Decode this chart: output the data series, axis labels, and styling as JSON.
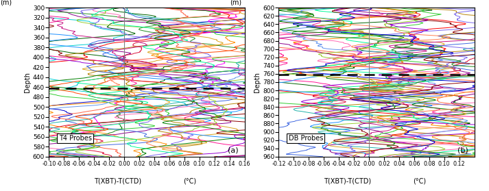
{
  "panel_a": {
    "depth_min": 300,
    "depth_max": 600,
    "xlim": [
      -0.1,
      0.16
    ],
    "xticks": [
      -0.1,
      -0.08,
      -0.06,
      -0.04,
      -0.02,
      0.0,
      0.02,
      0.04,
      0.06,
      0.08,
      0.1,
      0.12,
      0.14,
      0.16
    ],
    "xtick_labels": [
      "-0.10",
      "-0.08",
      "-0.06",
      "-0.04",
      "-0.02",
      "0.00",
      "0.02",
      "0.04",
      "0.06",
      "0.08",
      "0.10",
      "0.12",
      "0.14",
      "0.16"
    ],
    "yticks": [
      300,
      320,
      340,
      360,
      380,
      400,
      420,
      440,
      460,
      480,
      500,
      520,
      540,
      560,
      580,
      600
    ],
    "dashed_depth": 462,
    "n_profiles": 28,
    "label": "T4 Probes",
    "panel_tag": "(a)",
    "xlabel1": "T(XBT)-T(CTD)",
    "xlabel2": "(°C)"
  },
  "panel_b": {
    "depth_min": 600,
    "depth_max": 960,
    "xlim": [
      -0.12,
      0.14
    ],
    "xticks": [
      -0.12,
      -0.1,
      -0.08,
      -0.06,
      -0.04,
      -0.02,
      0.0,
      0.02,
      0.04,
      0.06,
      0.08,
      0.1,
      0.12
    ],
    "xtick_labels": [
      "-0.12",
      "-0.10",
      "-0.08",
      "-0.06",
      "-0.04",
      "-0.02",
      "0.00",
      "0.02",
      "0.04",
      "0.06",
      "0.08",
      "0.10",
      "0.12"
    ],
    "yticks": [
      600,
      620,
      640,
      660,
      680,
      700,
      720,
      740,
      760,
      780,
      800,
      820,
      840,
      860,
      880,
      900,
      920,
      940,
      960
    ],
    "dashed_depth": 762,
    "n_profiles": 27,
    "label": "DB Probes",
    "panel_tag": "(b)",
    "xlabel1": "T(XBT)-T(CTD)",
    "xlabel2": "(°C)"
  },
  "colors_a": [
    "#0000CD",
    "#FF0000",
    "#006400",
    "#FF00FF",
    "#00CED1",
    "#FF8C00",
    "#8B008B",
    "#228B22",
    "#DAA520",
    "#8B0000",
    "#FF69B4",
    "#1E90FF",
    "#DC143C",
    "#32CD32",
    "#FF1493",
    "#4169E1",
    "#FF6347",
    "#9400D3",
    "#20B2AA",
    "#B8860B",
    "#7B68EE",
    "#008000",
    "#FF4500",
    "#6495ED",
    "#9ACD32",
    "#C71585",
    "#00FA9A",
    "#FF7F50"
  ],
  "colors_b": [
    "#00CCCC",
    "#FF0000",
    "#006400",
    "#FF69B4",
    "#FF8C00",
    "#8B008B",
    "#DAA520",
    "#32CD32",
    "#FF1493",
    "#1E90FF",
    "#DC143C",
    "#4169E1",
    "#FF6347",
    "#9400D3",
    "#20B2AA",
    "#B8860B",
    "#7B68EE",
    "#008000",
    "#FF4500",
    "#6495ED",
    "#9ACD32",
    "#C71585",
    "#00FA9A",
    "#FF7F50",
    "#0000CD",
    "#228B22",
    "#8B0000"
  ],
  "ylabel_top": "(m)",
  "ylabel_bottom": "Depth",
  "bg_color": "#f0f0f0"
}
